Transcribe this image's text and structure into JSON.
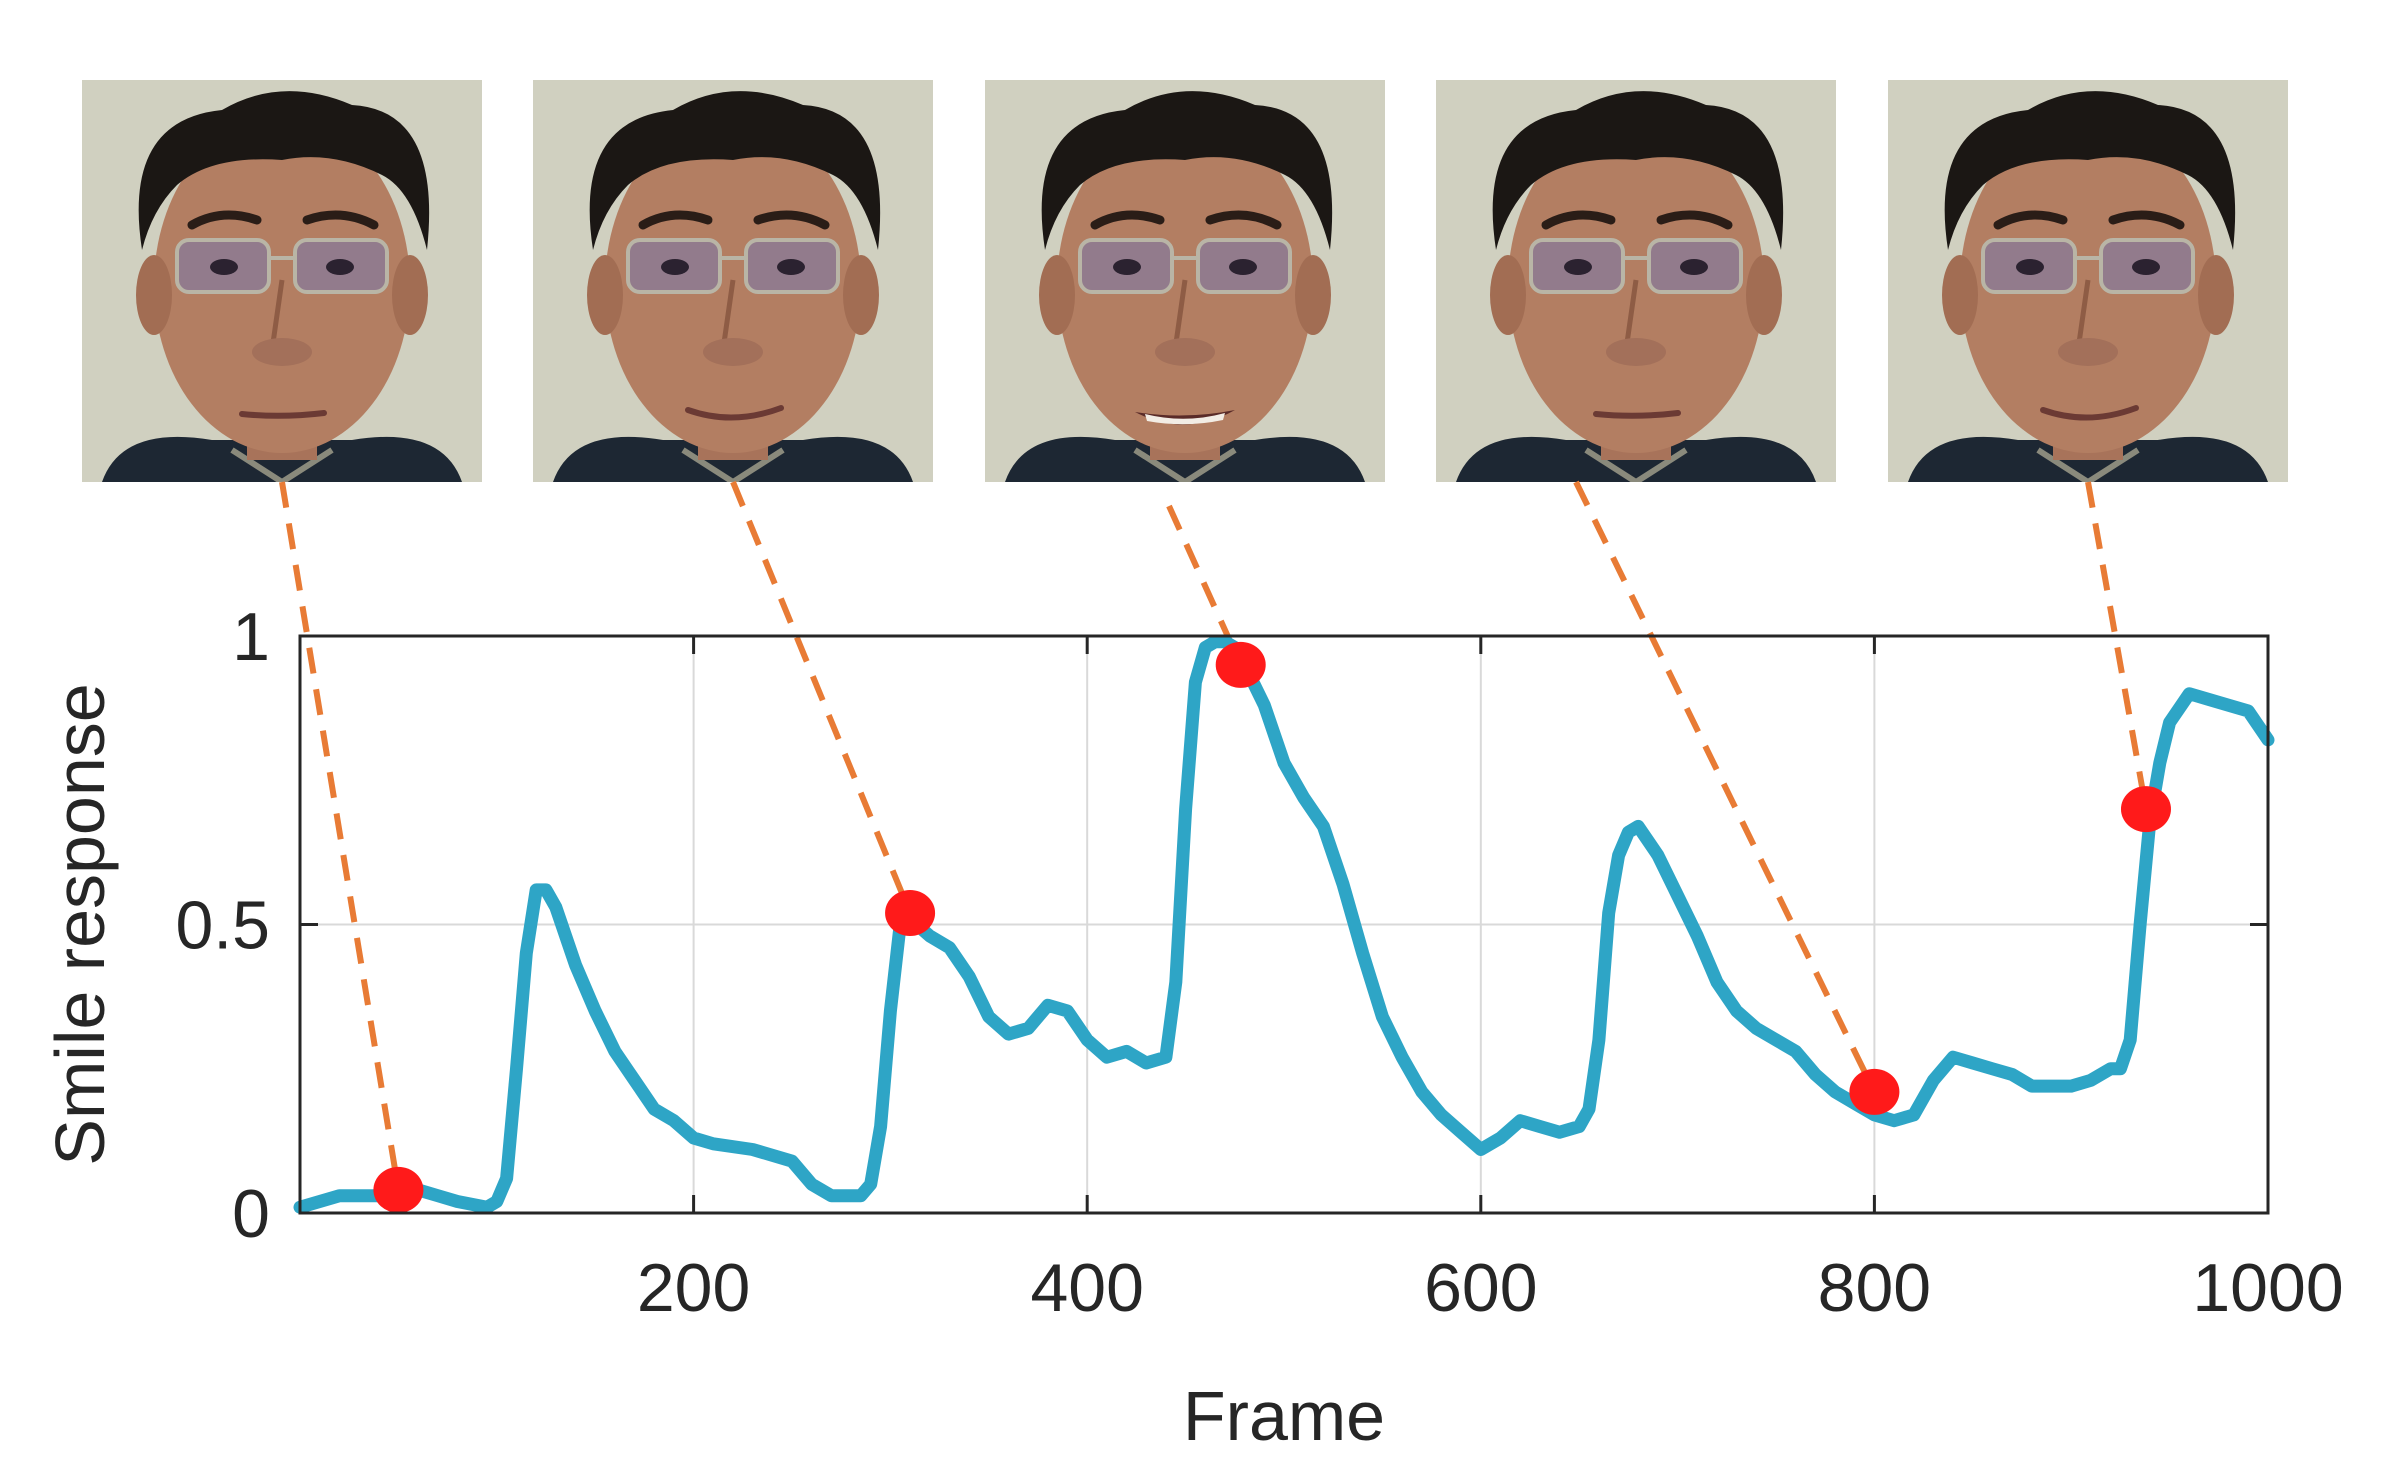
{
  "chart_data": {
    "type": "line",
    "xlabel": "Frame",
    "ylabel": "Smile response",
    "xlim": [
      0,
      1000
    ],
    "ylim": [
      0,
      1
    ],
    "xticks": [
      200,
      400,
      600,
      800,
      1000
    ],
    "yticks": [
      0,
      0.5,
      1
    ],
    "xtick_labels": [
      "200",
      "400",
      "600",
      "800",
      "1000"
    ],
    "ytick_labels": [
      "0",
      "0.5",
      "1"
    ],
    "grid": true,
    "line_color": "#2ea5c6",
    "marker_color": "#ff1a1a",
    "connector_color": "#e87b35",
    "series": [
      {
        "x": [
          0,
          20,
          40,
          60,
          70,
          80,
          95,
          100,
          105,
          110,
          115,
          120,
          125,
          130,
          140,
          150,
          160,
          170,
          180,
          190,
          200,
          210,
          230,
          250,
          260,
          270,
          280,
          285,
          290,
          295,
          300,
          305,
          310,
          320,
          330,
          340,
          350,
          360,
          370,
          380,
          390,
          400,
          410,
          420,
          430,
          440,
          445,
          450,
          455,
          460,
          465,
          470,
          475,
          480,
          490,
          500,
          510,
          520,
          530,
          540,
          550,
          560,
          570,
          580,
          590,
          600,
          610,
          620,
          630,
          640,
          650,
          655,
          660,
          665,
          670,
          675,
          680,
          690,
          700,
          710,
          720,
          730,
          740,
          750,
          760,
          770,
          780,
          790,
          800,
          810,
          820,
          830,
          840,
          850,
          860,
          870,
          880,
          890,
          900,
          910,
          920,
          925,
          930,
          935,
          940,
          945,
          950,
          960,
          970,
          980,
          990,
          1000
        ],
        "y": [
          0.01,
          0.03,
          0.03,
          0.04,
          0.03,
          0.02,
          0.01,
          0.02,
          0.06,
          0.25,
          0.45,
          0.56,
          0.56,
          0.53,
          0.43,
          0.35,
          0.28,
          0.23,
          0.18,
          0.16,
          0.13,
          0.12,
          0.11,
          0.09,
          0.05,
          0.03,
          0.03,
          0.03,
          0.05,
          0.15,
          0.35,
          0.5,
          0.51,
          0.48,
          0.46,
          0.41,
          0.34,
          0.31,
          0.32,
          0.36,
          0.35,
          0.3,
          0.27,
          0.28,
          0.26,
          0.27,
          0.4,
          0.7,
          0.92,
          0.98,
          0.99,
          0.99,
          0.98,
          0.95,
          0.88,
          0.78,
          0.72,
          0.67,
          0.57,
          0.45,
          0.34,
          0.27,
          0.21,
          0.17,
          0.14,
          0.11,
          0.13,
          0.16,
          0.15,
          0.14,
          0.15,
          0.18,
          0.3,
          0.52,
          0.62,
          0.66,
          0.67,
          0.62,
          0.55,
          0.48,
          0.4,
          0.35,
          0.32,
          0.3,
          0.28,
          0.24,
          0.21,
          0.19,
          0.17,
          0.16,
          0.17,
          0.23,
          0.27,
          0.26,
          0.25,
          0.24,
          0.22,
          0.22,
          0.22,
          0.23,
          0.25,
          0.25,
          0.3,
          0.5,
          0.68,
          0.78,
          0.85,
          0.9,
          0.89,
          0.88,
          0.87,
          0.82
        ]
      }
    ],
    "highlighted_points": [
      {
        "x": 50,
        "y": 0.04
      },
      {
        "x": 310,
        "y": 0.52
      },
      {
        "x": 478,
        "y": 0.95
      },
      {
        "x": 800,
        "y": 0.21
      },
      {
        "x": 938,
        "y": 0.7
      }
    ]
  },
  "faces": [
    {
      "name": "face-frame-1",
      "expression": "neutral"
    },
    {
      "name": "face-frame-2",
      "expression": "slight-smile"
    },
    {
      "name": "face-frame-3",
      "expression": "smile-teeth"
    },
    {
      "name": "face-frame-4",
      "expression": "neutral"
    },
    {
      "name": "face-frame-5",
      "expression": "smile"
    }
  ]
}
